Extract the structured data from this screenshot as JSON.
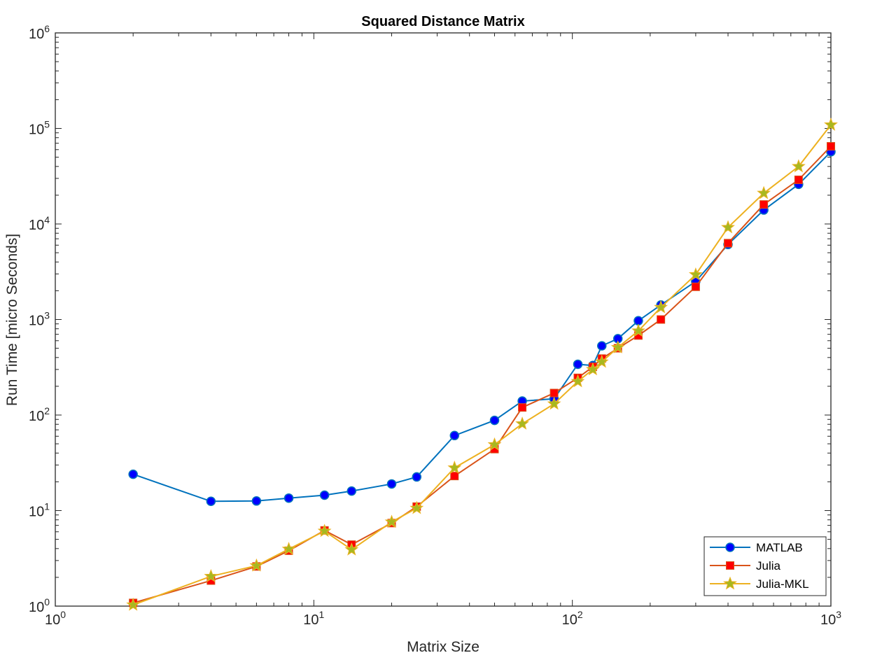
{
  "chart_data": {
    "type": "line",
    "title": "Squared Distance Matrix",
    "xlabel": "Matrix Size",
    "ylabel": "Run Time  [micro Seconds]",
    "xscale": "log",
    "yscale": "log",
    "xlim": [
      1,
      1000
    ],
    "ylim": [
      1,
      1000000
    ],
    "xticks": [
      {
        "value": 1,
        "base": "10",
        "exp": "0"
      },
      {
        "value": 10,
        "base": "10",
        "exp": "1"
      },
      {
        "value": 100,
        "base": "10",
        "exp": "2"
      },
      {
        "value": 1000,
        "base": "10",
        "exp": "3"
      }
    ],
    "yticks": [
      {
        "value": 1,
        "base": "10",
        "exp": "0"
      },
      {
        "value": 10,
        "base": "10",
        "exp": "1"
      },
      {
        "value": 100,
        "base": "10",
        "exp": "2"
      },
      {
        "value": 1000,
        "base": "10",
        "exp": "3"
      },
      {
        "value": 10000,
        "base": "10",
        "exp": "4"
      },
      {
        "value": 100000,
        "base": "10",
        "exp": "5"
      },
      {
        "value": 1000000,
        "base": "10",
        "exp": "6"
      }
    ],
    "grid": false,
    "legend_position": "bottom-right",
    "series": [
      {
        "name": "MATLAB",
        "color": "#0072BD",
        "marker": "circle",
        "marker_fill": "#0000FF",
        "x": [
          2,
          4,
          6,
          8,
          11,
          14,
          20,
          25,
          35,
          50,
          64,
          85,
          105,
          120,
          130,
          150,
          180,
          220,
          300,
          400,
          550,
          750,
          1000
        ],
        "y": [
          24,
          12.5,
          12.6,
          13.5,
          14.5,
          16,
          19,
          22.5,
          61,
          88,
          140,
          148,
          340,
          330,
          530,
          630,
          970,
          1420,
          2500,
          6100,
          14000,
          26000,
          57000
        ]
      },
      {
        "name": "Julia",
        "color": "#D95319",
        "marker": "square",
        "marker_fill": "#FF0000",
        "x": [
          2,
          4,
          6,
          8,
          11,
          14,
          20,
          25,
          35,
          50,
          64,
          85,
          105,
          120,
          130,
          150,
          180,
          220,
          300,
          400,
          550,
          750,
          1000
        ],
        "y": [
          1.08,
          1.85,
          2.6,
          3.8,
          6.2,
          4.4,
          7.4,
          11,
          23,
          44,
          120,
          170,
          245,
          320,
          390,
          500,
          680,
          1000,
          2200,
          6300,
          16000,
          29000,
          65000
        ]
      },
      {
        "name": "Julia-MKL",
        "color": "#EDB120",
        "marker": "star",
        "marker_fill": "#A8B820",
        "x": [
          2,
          4,
          6,
          8,
          11,
          14,
          20,
          25,
          35,
          50,
          64,
          85,
          105,
          120,
          130,
          150,
          180,
          220,
          300,
          400,
          550,
          750,
          1000
        ],
        "y": [
          1.03,
          2.05,
          2.65,
          3.95,
          6.1,
          3.9,
          7.6,
          10.6,
          28,
          49,
          81,
          131,
          225,
          300,
          360,
          510,
          760,
          1340,
          2950,
          9200,
          21000,
          40000,
          109000
        ]
      }
    ]
  }
}
